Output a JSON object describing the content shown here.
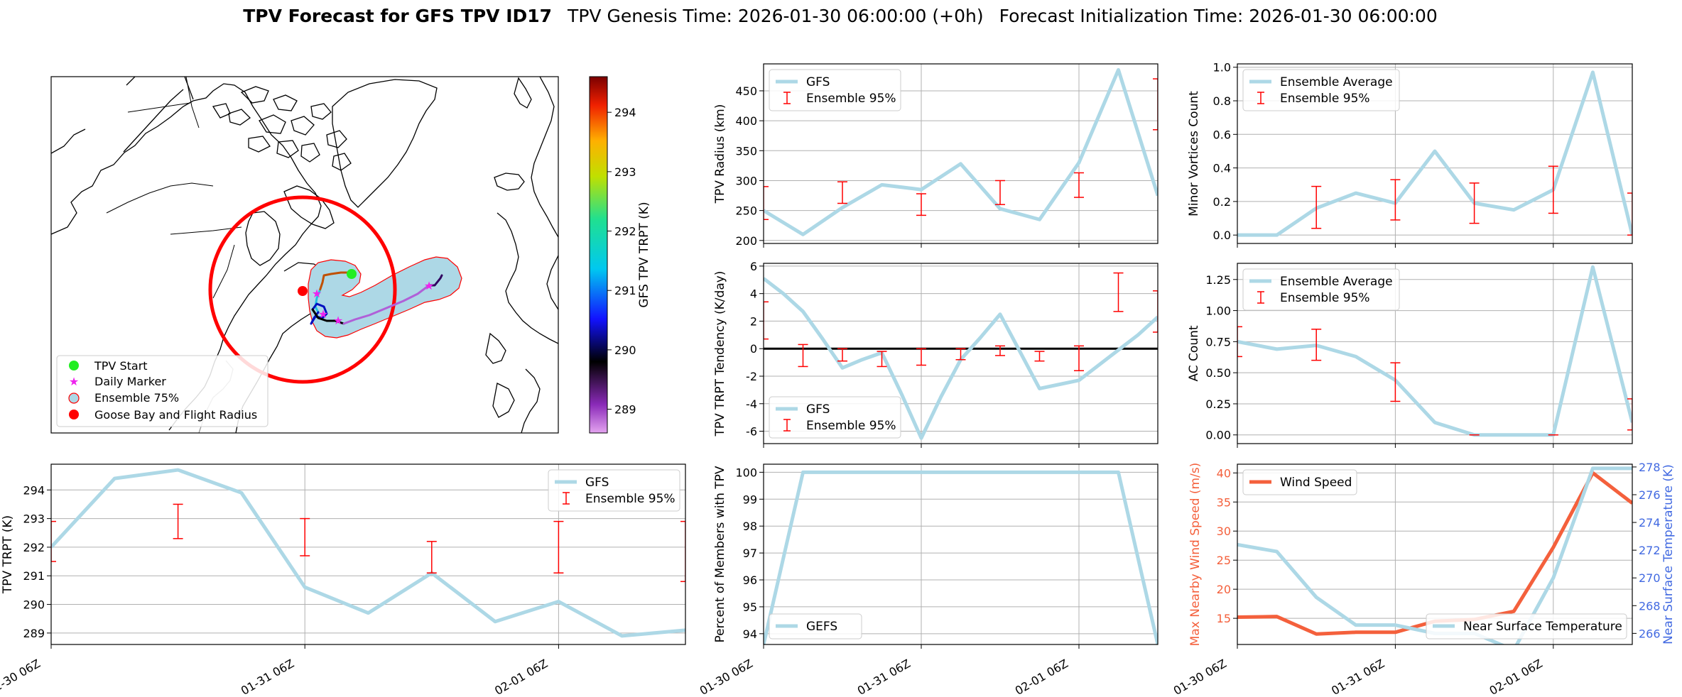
{
  "header": {
    "title_bold": "TPV Forecast for GFS TPV ID17",
    "genesis": "TPV Genesis Time: 2026-01-30 06:00:00 (+0h)",
    "init": "Forecast Initialization Time: 2026-01-30 06:00:00"
  },
  "colors": {
    "gfs_line": "#add8e6",
    "ensemble": "#ff0000",
    "wind": "#f4603c",
    "temp_axis": "#4169e1",
    "grid": "#b0b0b0"
  },
  "map": {
    "legend": [
      "TPV Start",
      "Daily Marker",
      "Ensemble 75%",
      "Goose Bay and Flight Radius"
    ],
    "colorbar": {
      "label": "GFS TPV TRPT (K)",
      "ticks": [
        "289",
        "290",
        "291",
        "292",
        "293",
        "294"
      ],
      "min": 288.6,
      "max": 294.6
    }
  },
  "chart_data": [
    {
      "id": "radius",
      "type": "line",
      "ylabel": "TPV Radius (km)",
      "ylim": [
        195,
        495
      ],
      "yticks": [
        "200",
        "250",
        "300",
        "350",
        "400",
        "450"
      ],
      "xticks": [
        "01-30 06Z",
        "01-31 06Z",
        "02-01 06Z"
      ],
      "legend": [
        "GFS",
        "Ensemble 95%"
      ],
      "legend_loc": "upper-left",
      "x": [
        0,
        6,
        12,
        18,
        24,
        30,
        36,
        42,
        48,
        54,
        60
      ],
      "series": [
        {
          "name": "GFS",
          "values": [
            250,
            210,
            255,
            293,
            285,
            328,
            253,
            235,
            330,
            485,
            275
          ]
        }
      ],
      "errorbars": [
        {
          "x": 0,
          "lo": 235,
          "hi": 290
        },
        {
          "x": 12,
          "lo": 262,
          "hi": 298
        },
        {
          "x": 24,
          "lo": 242,
          "hi": 278
        },
        {
          "x": 36,
          "lo": 260,
          "hi": 300
        },
        {
          "x": 48,
          "lo": 272,
          "hi": 313
        },
        {
          "x": 60,
          "lo": 385,
          "hi": 470
        }
      ]
    },
    {
      "id": "minor",
      "type": "line",
      "ylabel": "Minor Vortices Count",
      "ylim": [
        -0.05,
        1.02
      ],
      "yticks": [
        "0.0",
        "0.2",
        "0.4",
        "0.6",
        "0.8",
        "1.0"
      ],
      "xticks": [
        "01-30 06Z",
        "01-31 06Z",
        "02-01 06Z"
      ],
      "legend": [
        "Ensemble Average",
        "Ensemble 95%"
      ],
      "legend_loc": "upper-left",
      "x": [
        0,
        6,
        12,
        18,
        24,
        30,
        36,
        42,
        48,
        54,
        60
      ],
      "series": [
        {
          "name": "Ensemble Average",
          "values": [
            0.0,
            0.0,
            0.16,
            0.25,
            0.19,
            0.5,
            0.19,
            0.15,
            0.27,
            0.97,
            0.0
          ]
        }
      ],
      "errorbars": [
        {
          "x": 12,
          "lo": 0.04,
          "hi": 0.29
        },
        {
          "x": 24,
          "lo": 0.09,
          "hi": 0.33
        },
        {
          "x": 36,
          "lo": 0.07,
          "hi": 0.31
        },
        {
          "x": 48,
          "lo": 0.13,
          "hi": 0.41
        },
        {
          "x": 60,
          "lo": 0.0,
          "hi": 0.25
        }
      ]
    },
    {
      "id": "tend",
      "type": "line",
      "ylabel": "TPV TRPT Tendency (K/day)",
      "ylim": [
        -6.9,
        6.2
      ],
      "yticks": [
        "6",
        "4",
        "2",
        "0",
        "-2",
        "-4",
        "-6"
      ],
      "ytick_values": [
        6,
        4,
        2,
        0,
        -2,
        -4,
        -6
      ],
      "xticks": [
        "01-30 06Z",
        "01-31 06Z",
        "02-01 06Z"
      ],
      "legend": [
        "GFS",
        "Ensemble 95%"
      ],
      "legend_loc": "lower-left",
      "zero_line": true,
      "x": [
        0,
        3,
        6,
        9,
        12,
        15,
        18,
        21,
        24,
        27,
        30,
        33,
        36,
        39,
        42,
        45,
        48,
        51,
        54,
        57,
        60
      ],
      "series": [
        {
          "name": "GFS",
          "values": [
            5.1,
            4.0,
            2.7,
            0.7,
            -1.4,
            -0.8,
            -0.3,
            -3.3,
            -6.5,
            -3.5,
            -0.8,
            0.8,
            2.5,
            -0.2,
            -2.9,
            -2.6,
            -2.3,
            -1.2,
            -0.1,
            1.0,
            2.3
          ]
        }
      ],
      "errorbars": [
        {
          "x": 0,
          "lo": 0.7,
          "hi": 3.4
        },
        {
          "x": 6,
          "lo": -1.3,
          "hi": 0.3
        },
        {
          "x": 12,
          "lo": -0.9,
          "hi": -0.0
        },
        {
          "x": 18,
          "lo": -1.3,
          "hi": -0.2
        },
        {
          "x": 24,
          "lo": -1.2,
          "hi": 0.0
        },
        {
          "x": 30,
          "lo": -0.8,
          "hi": 0.0
        },
        {
          "x": 36,
          "lo": -0.5,
          "hi": 0.2
        },
        {
          "x": 42,
          "lo": -0.9,
          "hi": -0.2
        },
        {
          "x": 48,
          "lo": -1.6,
          "hi": 0.2
        },
        {
          "x": 54,
          "lo": 2.7,
          "hi": 5.5
        },
        {
          "x": 60,
          "lo": 1.2,
          "hi": 4.2
        }
      ]
    },
    {
      "id": "ac",
      "type": "line",
      "ylabel": "AC Count",
      "ylim": [
        -0.07,
        1.38
      ],
      "yticks": [
        "0.00",
        "0.25",
        "0.50",
        "0.75",
        "1.00",
        "1.25"
      ],
      "xticks": [
        "01-30 06Z",
        "01-31 06Z",
        "02-01 06Z"
      ],
      "legend": [
        "Ensemble Average",
        "Ensemble 95%"
      ],
      "legend_loc": "upper-left",
      "x": [
        0,
        6,
        12,
        18,
        24,
        30,
        36,
        42,
        48,
        54,
        60
      ],
      "series": [
        {
          "name": "Ensemble Average",
          "values": [
            0.75,
            0.69,
            0.72,
            0.63,
            0.44,
            0.1,
            0.0,
            0.0,
            0.0,
            1.35,
            0.1
          ]
        }
      ],
      "errorbars": [
        {
          "x": 0,
          "lo": 0.63,
          "hi": 0.87
        },
        {
          "x": 12,
          "lo": 0.6,
          "hi": 0.85
        },
        {
          "x": 24,
          "lo": 0.27,
          "hi": 0.58
        },
        {
          "x": 36,
          "lo": 0.0,
          "hi": 0.0
        },
        {
          "x": 48,
          "lo": 0.0,
          "hi": 0.0
        },
        {
          "x": 60,
          "lo": 0.04,
          "hi": 0.29
        }
      ]
    },
    {
      "id": "trpt",
      "type": "line",
      "ylabel": "TPV TRPT (K)",
      "ylim": [
        288.6,
        294.9
      ],
      "yticks": [
        "289",
        "290",
        "291",
        "292",
        "293",
        "294"
      ],
      "xticks": [
        "01-30 06Z",
        "01-31 06Z",
        "02-01 06Z"
      ],
      "legend": [
        "GFS",
        "Ensemble 95%"
      ],
      "legend_loc": "upper-right",
      "x": [
        0,
        6,
        12,
        18,
        24,
        30,
        36,
        42,
        48,
        54,
        60
      ],
      "series": [
        {
          "name": "GFS",
          "values": [
            292.0,
            294.4,
            294.7,
            293.9,
            290.6,
            289.7,
            291.1,
            289.4,
            290.1,
            288.9,
            289.1
          ]
        }
      ],
      "errorbars": [
        {
          "x": 0,
          "lo": 291.5,
          "hi": 292.9
        },
        {
          "x": 12,
          "lo": 292.3,
          "hi": 293.5
        },
        {
          "x": 24,
          "lo": 291.7,
          "hi": 293.0
        },
        {
          "x": 36,
          "lo": 291.1,
          "hi": 292.2
        },
        {
          "x": 48,
          "lo": 291.1,
          "hi": 292.9
        },
        {
          "x": 60,
          "lo": 290.8,
          "hi": 292.9
        }
      ]
    },
    {
      "id": "pct",
      "type": "line",
      "ylabel": "Percent of Members with TPV",
      "ylim": [
        93.6,
        100.3
      ],
      "yticks": [
        "94",
        "95",
        "96",
        "97",
        "98",
        "99",
        "100"
      ],
      "xticks": [
        "01-30 06Z",
        "01-31 06Z",
        "02-01 06Z"
      ],
      "legend": [
        "GEFS"
      ],
      "legend_loc": "lower-left",
      "x": [
        0,
        6,
        12,
        18,
        24,
        30,
        36,
        42,
        48,
        54,
        60
      ],
      "series": [
        {
          "name": "GEFS",
          "values": [
            93.6,
            100,
            100,
            100,
            100,
            100,
            100,
            100,
            100,
            100,
            93.6
          ]
        }
      ],
      "errorbars": []
    },
    {
      "id": "wind",
      "type": "line",
      "ylabel": "Max Nearby Wind Speed (m/s)",
      "ylabel_right": "Near Surface Temperature (K)",
      "ylim": [
        10.5,
        41.5
      ],
      "yticks": [
        "15",
        "20",
        "25",
        "30",
        "35",
        "40"
      ],
      "ylim_right": [
        265.2,
        278.2
      ],
      "yticks_right": [
        "266",
        "268",
        "270",
        "272",
        "274",
        "276",
        "278"
      ],
      "xticks": [
        "01-30 06Z",
        "01-31 06Z",
        "02-01 06Z"
      ],
      "legend": [
        "Wind Speed"
      ],
      "legend_right": [
        "Near Surface Temperature"
      ],
      "x": [
        0,
        6,
        12,
        18,
        24,
        30,
        36,
        42,
        48,
        54,
        60
      ],
      "series": [
        {
          "name": "Wind Speed",
          "values": [
            15.2,
            15.3,
            12.3,
            12.6,
            12.6,
            14.5,
            14.8,
            16.2,
            27.2,
            40.0,
            34.8
          ]
        },
        {
          "name": "Near Surface Temperature",
          "values": [
            272.4,
            271.9,
            268.6,
            266.6,
            266.6,
            266.0,
            266.0,
            264.8,
            270.0,
            277.9,
            277.9
          ]
        }
      ]
    }
  ]
}
